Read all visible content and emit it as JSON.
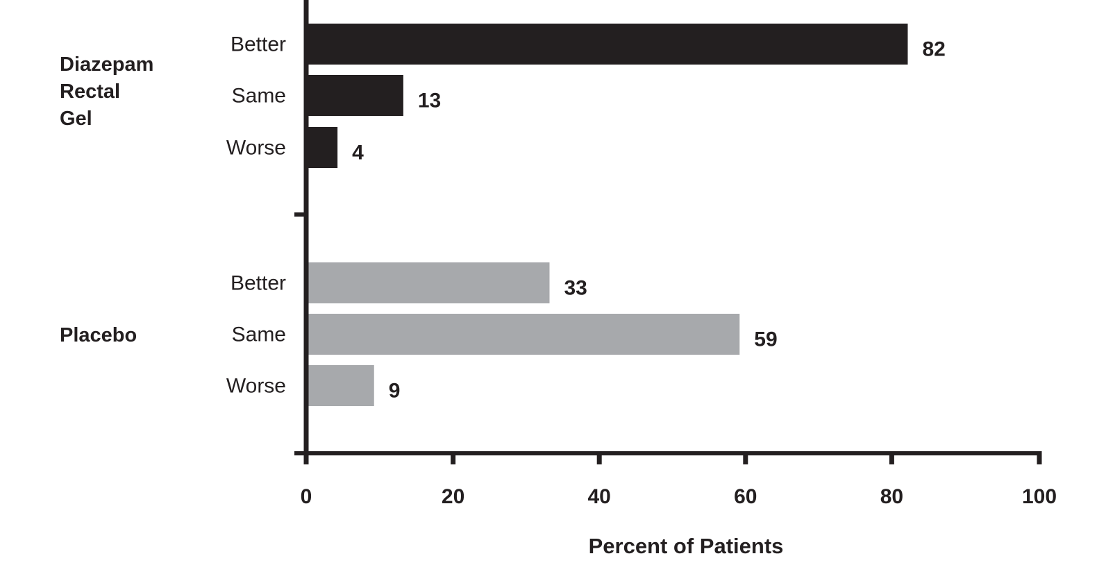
{
  "chart_data": {
    "type": "bar",
    "orientation": "horizontal",
    "xlabel": "Percent of Patients",
    "xlim": [
      0,
      100
    ],
    "xticks": [
      0,
      20,
      40,
      60,
      80,
      100
    ],
    "groups": [
      {
        "name": "Diazepam Rectal Gel",
        "name_lines": [
          "Diazepam",
          "Rectal",
          "Gel"
        ],
        "color": "#231f20",
        "categories": [
          "Better",
          "Same",
          "Worse"
        ],
        "values": [
          82,
          13,
          4
        ]
      },
      {
        "name": "Placebo",
        "name_lines": [
          "Placebo"
        ],
        "color": "#a7a9ac",
        "categories": [
          "Better",
          "Same",
          "Worse"
        ],
        "values": [
          33,
          59,
          9
        ]
      }
    ]
  }
}
